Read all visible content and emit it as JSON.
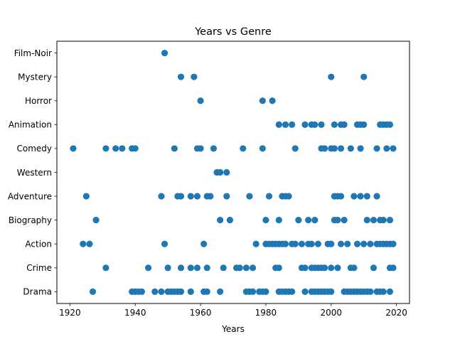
{
  "chart_data": {
    "type": "scatter",
    "title": "Years vs Genre",
    "xlabel": "Years",
    "ylabel": "",
    "xlim": [
      1916,
      2024
    ],
    "xticks": [
      1920,
      1940,
      1960,
      1980,
      2000,
      2020
    ],
    "categories": [
      "Drama",
      "Crime",
      "Action",
      "Biography",
      "Adventure",
      "Western",
      "Comedy",
      "Animation",
      "Horror",
      "Mystery",
      "Film-Noir"
    ],
    "grid": false,
    "legend": "none",
    "marker_color": "#1f77b4",
    "series": [
      {
        "points": [
          {
            "genre": "Film-Noir",
            "years": [
              1949
            ]
          },
          {
            "genre": "Mystery",
            "years": [
              1954,
              1958,
              2000,
              2010
            ]
          },
          {
            "genre": "Horror",
            "years": [
              1960,
              1979,
              1982
            ]
          },
          {
            "genre": "Animation",
            "years": [
              1984,
              1986,
              1988,
              1992,
              1994,
              1995,
              1997,
              2001,
              2003,
              2004,
              2008,
              2009,
              2010,
              2015,
              2016,
              2017,
              2018
            ]
          },
          {
            "genre": "Comedy",
            "years": [
              1921,
              1931,
              1934,
              1936,
              1939,
              1940,
              1952,
              1959,
              1960,
              1964,
              1973,
              1979,
              1989,
              1997,
              1998,
              2000,
              2001,
              2003,
              2006,
              2009,
              2014,
              2017,
              2019
            ]
          },
          {
            "genre": "Western",
            "years": [
              1965,
              1966,
              1968
            ]
          },
          {
            "genre": "Adventure",
            "years": [
              1925,
              1948,
              1953,
              1954,
              1957,
              1959,
              1962,
              1963,
              1968,
              1975,
              1981,
              1985,
              1986,
              1987,
              2001,
              2002,
              2003,
              2007,
              2009,
              2011,
              2014
            ]
          },
          {
            "genre": "Biography",
            "years": [
              1928,
              1966,
              1969,
              1980,
              1984,
              1990,
              1993,
              1995,
              2001,
              2002,
              2004,
              2011,
              2013,
              2015,
              2016,
              2018
            ]
          },
          {
            "genre": "Action",
            "years": [
              1924,
              1926,
              1949,
              1961,
              1977,
              1980,
              1981,
              1982,
              1983,
              1984,
              1985,
              1986,
              1988,
              1989,
              1991,
              1993,
              1994,
              1996,
              1999,
              2000,
              2003,
              2005,
              2008,
              2010,
              2012,
              2014,
              2015,
              2016,
              2017,
              2018,
              2019
            ]
          },
          {
            "genre": "Crime",
            "years": [
              1931,
              1944,
              1950,
              1954,
              1957,
              1959,
              1962,
              1967,
              1971,
              1972,
              1974,
              1976,
              1983,
              1984,
              1991,
              1992,
              1994,
              1995,
              1996,
              1997,
              1998,
              2000,
              2002,
              2006,
              2007,
              2013,
              2018,
              2019
            ]
          },
          {
            "genre": "Drama",
            "years": [
              1927,
              1939,
              1940,
              1941,
              1942,
              1946,
              1948,
              1950,
              1951,
              1952,
              1953,
              1954,
              1957,
              1961,
              1962,
              1966,
              1974,
              1975,
              1976,
              1978,
              1979,
              1980,
              1984,
              1985,
              1986,
              1987,
              1988,
              1992,
              1994,
              1995,
              1996,
              1997,
              1998,
              1999,
              2000,
              2004,
              2005,
              2006,
              2007,
              2008,
              2009,
              2010,
              2011,
              2012,
              2014,
              2015,
              2016,
              2018
            ]
          }
        ]
      }
    ]
  }
}
